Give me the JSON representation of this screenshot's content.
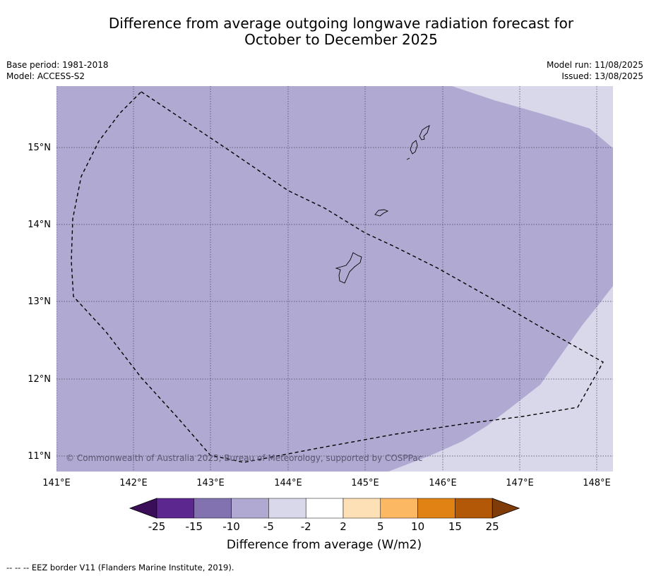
{
  "title": {
    "line1": "Difference from average outgoing longwave radiation forecast for",
    "line2": "October to December 2025"
  },
  "meta": {
    "base_period": "Base period: 1981-2018",
    "model": "Model: ACCESS-S2",
    "model_run": "Model run: 11/08/2025",
    "issued": "Issued: 13/08/2025"
  },
  "map": {
    "lon_labels": [
      "141°E",
      "142°E",
      "143°E",
      "144°E",
      "145°E",
      "146°E",
      "147°E",
      "148°E"
    ],
    "lat_labels": [
      "15°N",
      "14°N",
      "13°N",
      "12°N",
      "11°N"
    ],
    "copyright": "© Commonwealth of Australia 2025, Bureau of Meteorology, supported by COSPPac",
    "colors": {
      "minus10_minus5": "#b0aad2",
      "minus5_minus2": "#d8d8ea"
    }
  },
  "colorbar": {
    "ticks": [
      "-25",
      "-15",
      "-10",
      "-5",
      "-2",
      "2",
      "5",
      "10",
      "15",
      "25"
    ],
    "colors": [
      "#3b0e5a",
      "#5c2890",
      "#8273b0",
      "#b0aad2",
      "#d8d8ea",
      "#ffffff",
      "#fee0b6",
      "#fdb863",
      "#e08214",
      "#b35806",
      "#7f3b08"
    ],
    "label": "Difference from average (W/m2)"
  },
  "footer": "--  --  -- EEZ border V11 (Flanders Marine Institute, 2019)."
}
